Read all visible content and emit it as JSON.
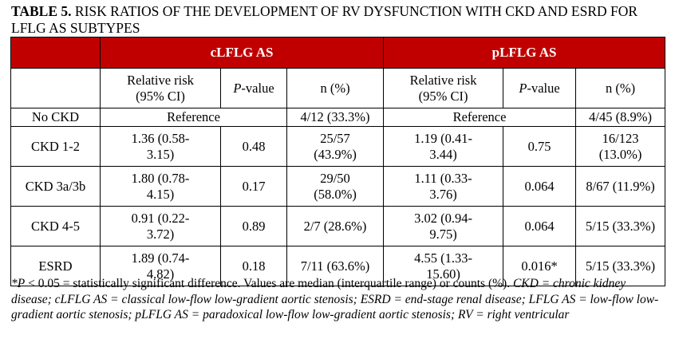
{
  "table": {
    "title_bold": "TABLE 5.",
    "title_rest": " RISK RATIOS OF THE DEVELOPMENT OF RV DYSFUNCTION WITH CKD AND ESRD FOR LFLG AS SUBTYPES",
    "groups": [
      "cLFLG AS",
      "pLFLG AS"
    ],
    "subheaders": {
      "rr_line1": "Relative risk",
      "rr_line2": "(95% CI)",
      "p_italic": "P",
      "p_rest": "-value",
      "n": "n (%)"
    },
    "no_ckd": {
      "label": "No CKD",
      "c_ref": "Reference",
      "c_n": "4/12 (33.3%)",
      "p_ref": "Reference",
      "p_n": "4/45 (8.9%)"
    },
    "rows": [
      {
        "label": "CKD 1-2",
        "c_rr1": "1.36 (0.58-",
        "c_rr2": "3.15)",
        "c_p": "0.48",
        "c_n1": "25/57",
        "c_n2": "(43.9%)",
        "p_rr1": "1.19 (0.41-",
        "p_rr2": "3.44)",
        "p_p": "0.75",
        "p_n1": "16/123",
        "p_n2": "(13.0%)"
      },
      {
        "label": "CKD 3a/3b",
        "c_rr1": "1.80 (0.78-",
        "c_rr2": "4.15)",
        "c_p": "0.17",
        "c_n1": "29/50",
        "c_n2": "(58.0%)",
        "p_rr1": "1.11 (0.33-",
        "p_rr2": "3.76)",
        "p_p": "0.064",
        "p_n1": "8/67 (11.9%)",
        "p_n2": ""
      },
      {
        "label": "CKD 4-5",
        "c_rr1": "0.91 (0.22-",
        "c_rr2": "3.72)",
        "c_p": "0.89",
        "c_n1": "2/7 (28.6%)",
        "c_n2": "",
        "p_rr1": "3.02 (0.94-",
        "p_rr2": "9.75)",
        "p_p": "0.064",
        "p_n1": "5/15 (33.3%)",
        "p_n2": ""
      },
      {
        "label": "ESRD",
        "c_rr1": "1.89 (0.74-",
        "c_rr2": "4.82)",
        "c_p": "0.18",
        "c_n1": "7/11 (63.6%)",
        "c_n2": "",
        "p_rr1": "4.55 (1.33-",
        "p_rr2": "15.60)",
        "p_p": "0.016*",
        "p_n1": "5/15 (33.3%)",
        "p_n2": ""
      }
    ],
    "footnote": {
      "star_p": "*P",
      "part1": " < 0.05 = statistically significant difference. Values are median (interquartile range) or counts (%). ",
      "abbrev": "CKD = chronic kidney disease; cLFLG AS = classical low-flow low-gradient aortic stenosis; ESRD = end-stage renal disease; LFLG AS = low-flow low-gradient aortic stenosis; pLFLG AS = paradoxical low-flow low-gradient aortic stenosis; RV = right ventricular"
    },
    "colors": {
      "header_bg": "#c00000",
      "header_text": "#ffffff"
    }
  }
}
